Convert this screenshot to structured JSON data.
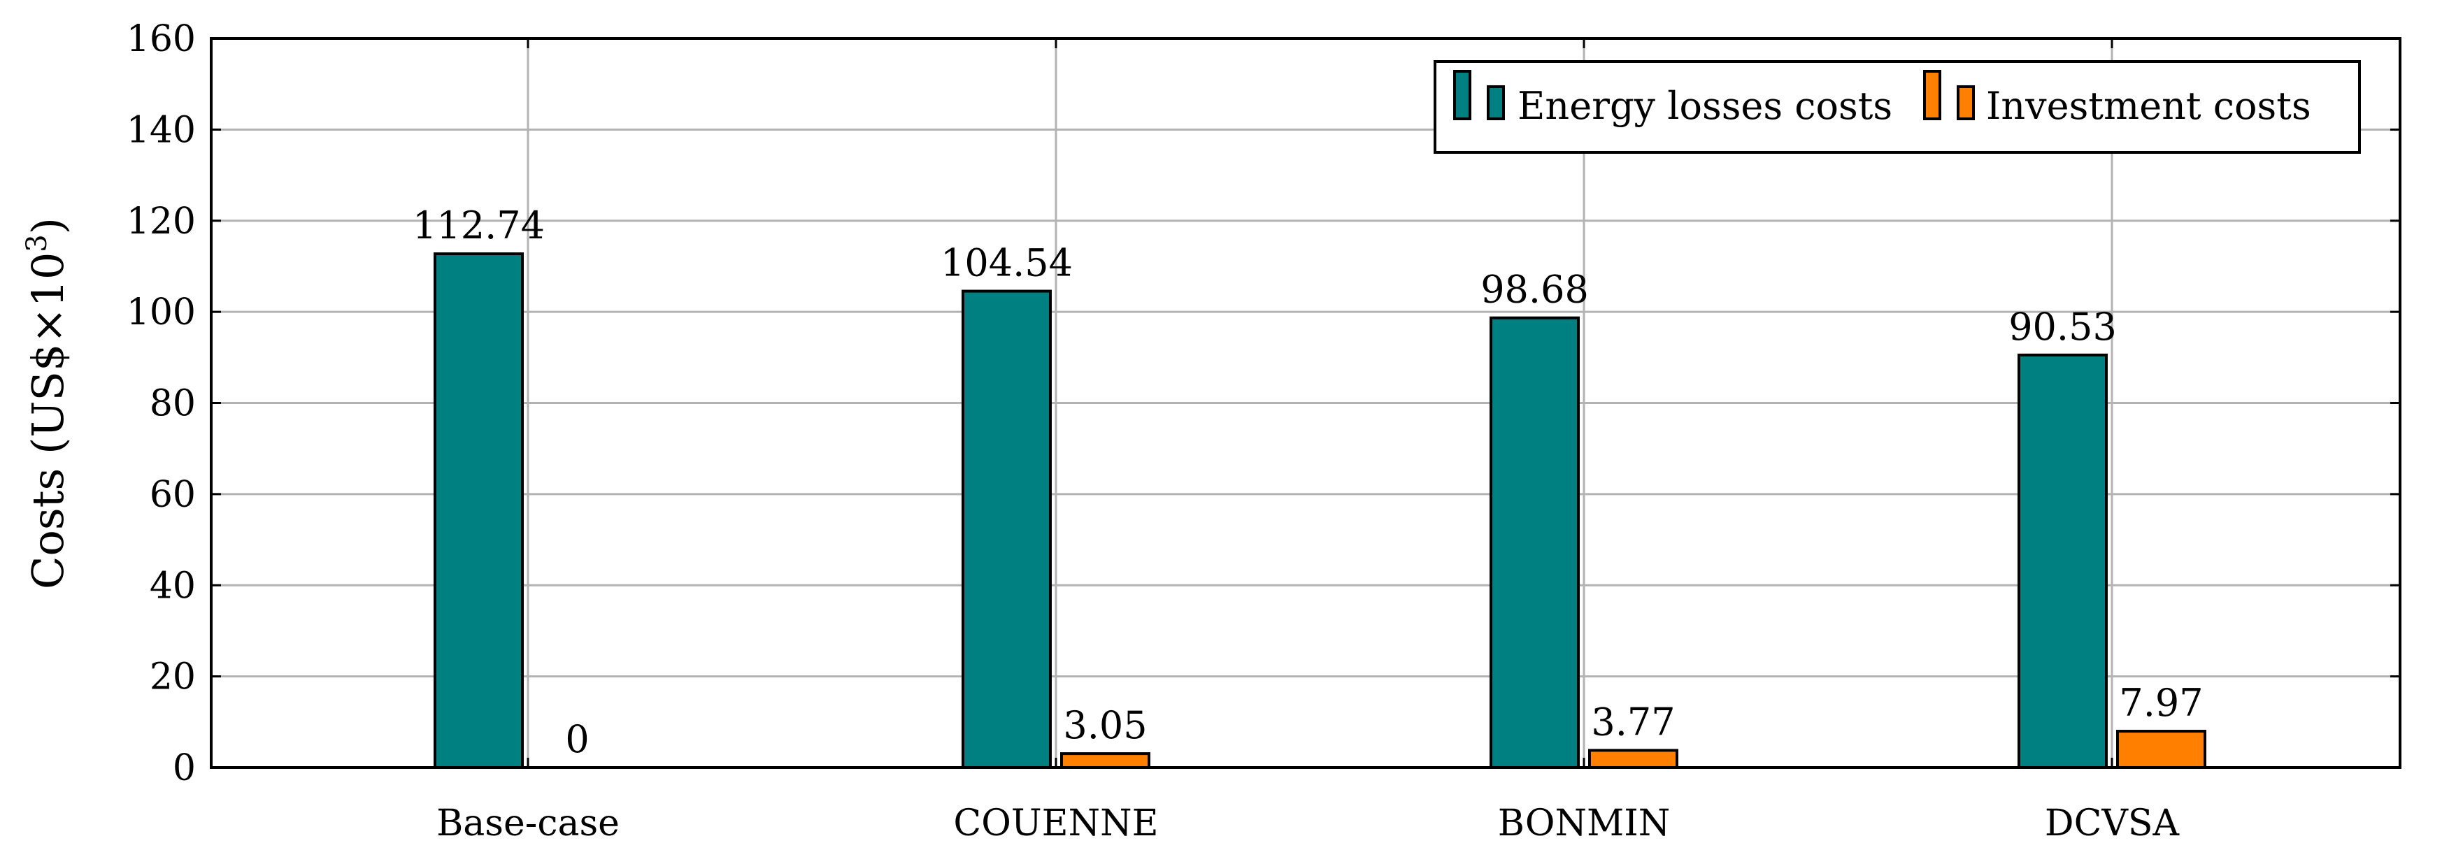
{
  "colors": {
    "energy": "#008080",
    "investment": "#ff7f00",
    "grid": "#b3b3b3"
  },
  "chart_data": {
    "type": "bar",
    "categories": [
      "Base-case",
      "COUENNE",
      "BONMIN",
      "DCVSA"
    ],
    "series": [
      {
        "name": "Energy losses costs",
        "values": [
          112.74,
          104.54,
          98.68,
          90.53
        ],
        "labels": [
          "112.74",
          "104.54",
          "98.68",
          "90.53"
        ]
      },
      {
        "name": "Investment costs",
        "values": [
          0,
          3.05,
          3.77,
          7.97
        ],
        "labels": [
          "0",
          "3.05",
          "3.77",
          "7.97"
        ]
      }
    ],
    "title": "",
    "xlabel": "",
    "ylabel": "Costs (US$×10",
    "ylabel_sup": "3",
    "ylabel_close": ")",
    "ylim": [
      0,
      160
    ],
    "yticks": [
      0,
      20,
      40,
      60,
      80,
      100,
      120,
      140,
      160
    ],
    "grid": true,
    "legend_position": "top-right"
  }
}
